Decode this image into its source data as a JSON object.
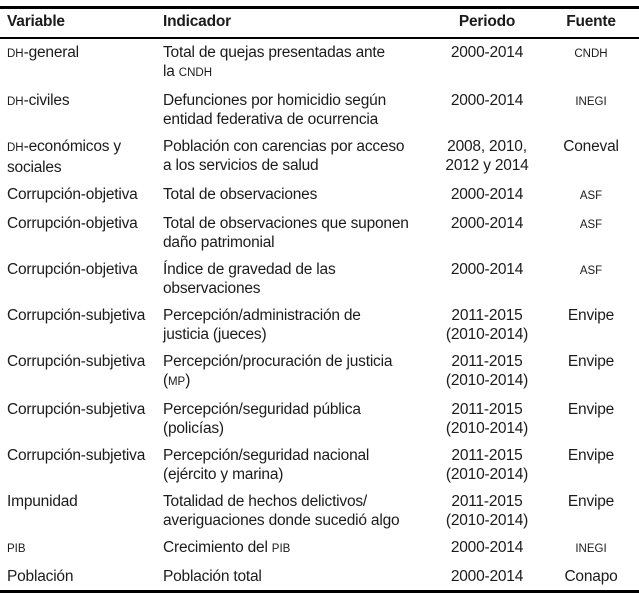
{
  "table": {
    "columns": [
      {
        "key": "variable",
        "label": "Variable",
        "align": "left"
      },
      {
        "key": "indicador",
        "label": "Indicador",
        "align": "left"
      },
      {
        "key": "periodo",
        "label": "Periodo",
        "align": "center"
      },
      {
        "key": "fuente",
        "label": "Fuente",
        "align": "center"
      }
    ],
    "rows": [
      {
        "variable": [
          [
            {
              "t": "DH",
              "sc": true
            },
            {
              "t": "-general"
            }
          ]
        ],
        "indicador": [
          [
            {
              "t": "Total de quejas presentadas ante"
            }
          ],
          [
            {
              "t": "la "
            },
            {
              "t": "CNDH",
              "sc": true
            }
          ]
        ],
        "periodo": [
          [
            {
              "t": "2000-2014"
            }
          ]
        ],
        "fuente": [
          [
            {
              "t": "CNDH",
              "sc": true
            }
          ]
        ]
      },
      {
        "variable": [
          [
            {
              "t": "DH",
              "sc": true
            },
            {
              "t": "-civiles"
            }
          ]
        ],
        "indicador": [
          [
            {
              "t": "Defunciones por homicidio según"
            }
          ],
          [
            {
              "t": "entidad federativa de ocurrencia"
            }
          ]
        ],
        "periodo": [
          [
            {
              "t": "2000-2014"
            }
          ]
        ],
        "fuente": [
          [
            {
              "t": "INEGI",
              "sc": true
            }
          ]
        ]
      },
      {
        "variable": [
          [
            {
              "t": "DH",
              "sc": true
            },
            {
              "t": "-económicos y"
            }
          ],
          [
            {
              "t": "sociales"
            }
          ]
        ],
        "indicador": [
          [
            {
              "t": "Población con carencias por acceso"
            }
          ],
          [
            {
              "t": "a los servicios de salud"
            }
          ]
        ],
        "periodo": [
          [
            {
              "t": "2008, 2010,"
            }
          ],
          [
            {
              "t": "2012 y 2014"
            }
          ]
        ],
        "fuente": [
          [
            {
              "t": "Coneval"
            }
          ]
        ]
      },
      {
        "variable": [
          [
            {
              "t": "Corrupción-objetiva"
            }
          ]
        ],
        "indicador": [
          [
            {
              "t": "Total de observaciones"
            }
          ]
        ],
        "periodo": [
          [
            {
              "t": "2000-2014"
            }
          ]
        ],
        "fuente": [
          [
            {
              "t": "ASF",
              "sc": true
            }
          ]
        ]
      },
      {
        "variable": [
          [
            {
              "t": "Corrupción-objetiva"
            }
          ]
        ],
        "indicador": [
          [
            {
              "t": "Total de observaciones que suponen"
            }
          ],
          [
            {
              "t": "daño patrimonial"
            }
          ]
        ],
        "periodo": [
          [
            {
              "t": "2000-2014"
            }
          ]
        ],
        "fuente": [
          [
            {
              "t": "ASF",
              "sc": true
            }
          ]
        ]
      },
      {
        "variable": [
          [
            {
              "t": "Corrupción-objetiva"
            }
          ]
        ],
        "indicador": [
          [
            {
              "t": "Índice de gravedad de las"
            }
          ],
          [
            {
              "t": "observaciones"
            }
          ]
        ],
        "periodo": [
          [
            {
              "t": "2000-2014"
            }
          ]
        ],
        "fuente": [
          [
            {
              "t": "ASF",
              "sc": true
            }
          ]
        ]
      },
      {
        "variable": [
          [
            {
              "t": "Corrupción-subjetiva"
            }
          ]
        ],
        "indicador": [
          [
            {
              "t": "Percepción/administración de"
            }
          ],
          [
            {
              "t": "justicia (jueces)"
            }
          ]
        ],
        "periodo": [
          [
            {
              "t": "2011-2015"
            }
          ],
          [
            {
              "t": "(2010-2014)"
            }
          ]
        ],
        "fuente": [
          [
            {
              "t": "Envipe"
            }
          ]
        ]
      },
      {
        "variable": [
          [
            {
              "t": "Corrupción-subjetiva"
            }
          ]
        ],
        "indicador": [
          [
            {
              "t": "Percepción/procuración de justicia"
            }
          ],
          [
            {
              "t": "("
            },
            {
              "t": "MP",
              "sc": true
            },
            {
              "t": ")"
            }
          ]
        ],
        "periodo": [
          [
            {
              "t": "2011-2015"
            }
          ],
          [
            {
              "t": "(2010-2014)"
            }
          ]
        ],
        "fuente": [
          [
            {
              "t": "Envipe"
            }
          ]
        ]
      },
      {
        "variable": [
          [
            {
              "t": "Corrupción-subjetiva"
            }
          ]
        ],
        "indicador": [
          [
            {
              "t": "Percepción/seguridad pública"
            }
          ],
          [
            {
              "t": "(policías)"
            }
          ]
        ],
        "periodo": [
          [
            {
              "t": "2011-2015"
            }
          ],
          [
            {
              "t": "(2010-2014)"
            }
          ]
        ],
        "fuente": [
          [
            {
              "t": "Envipe"
            }
          ]
        ]
      },
      {
        "variable": [
          [
            {
              "t": "Corrupción-subjetiva"
            }
          ]
        ],
        "indicador": [
          [
            {
              "t": "Percepción/seguridad nacional"
            }
          ],
          [
            {
              "t": "(ejército y marina)"
            }
          ]
        ],
        "periodo": [
          [
            {
              "t": "2011-2015"
            }
          ],
          [
            {
              "t": "(2010-2014)"
            }
          ]
        ],
        "fuente": [
          [
            {
              "t": "Envipe"
            }
          ]
        ]
      },
      {
        "variable": [
          [
            {
              "t": "Impunidad"
            }
          ]
        ],
        "indicador": [
          [
            {
              "t": "Totalidad de hechos delictivos/"
            }
          ],
          [
            {
              "t": "averiguaciones donde sucedió algo"
            }
          ]
        ],
        "periodo": [
          [
            {
              "t": "2011-2015"
            }
          ],
          [
            {
              "t": "(2010-2014)"
            }
          ]
        ],
        "fuente": [
          [
            {
              "t": "Envipe"
            }
          ]
        ]
      },
      {
        "variable": [
          [
            {
              "t": "PIB",
              "sc": true
            }
          ]
        ],
        "indicador": [
          [
            {
              "t": "Crecimiento del "
            },
            {
              "t": "PIB",
              "sc": true
            }
          ]
        ],
        "periodo": [
          [
            {
              "t": "2000-2014"
            }
          ]
        ],
        "fuente": [
          [
            {
              "t": "INEGI",
              "sc": true
            }
          ]
        ]
      },
      {
        "variable": [
          [
            {
              "t": "Población"
            }
          ]
        ],
        "indicador": [
          [
            {
              "t": "Población total"
            }
          ]
        ],
        "periodo": [
          [
            {
              "t": "2000-2014"
            }
          ]
        ],
        "fuente": [
          [
            {
              "t": "Conapo"
            }
          ]
        ]
      }
    ]
  }
}
